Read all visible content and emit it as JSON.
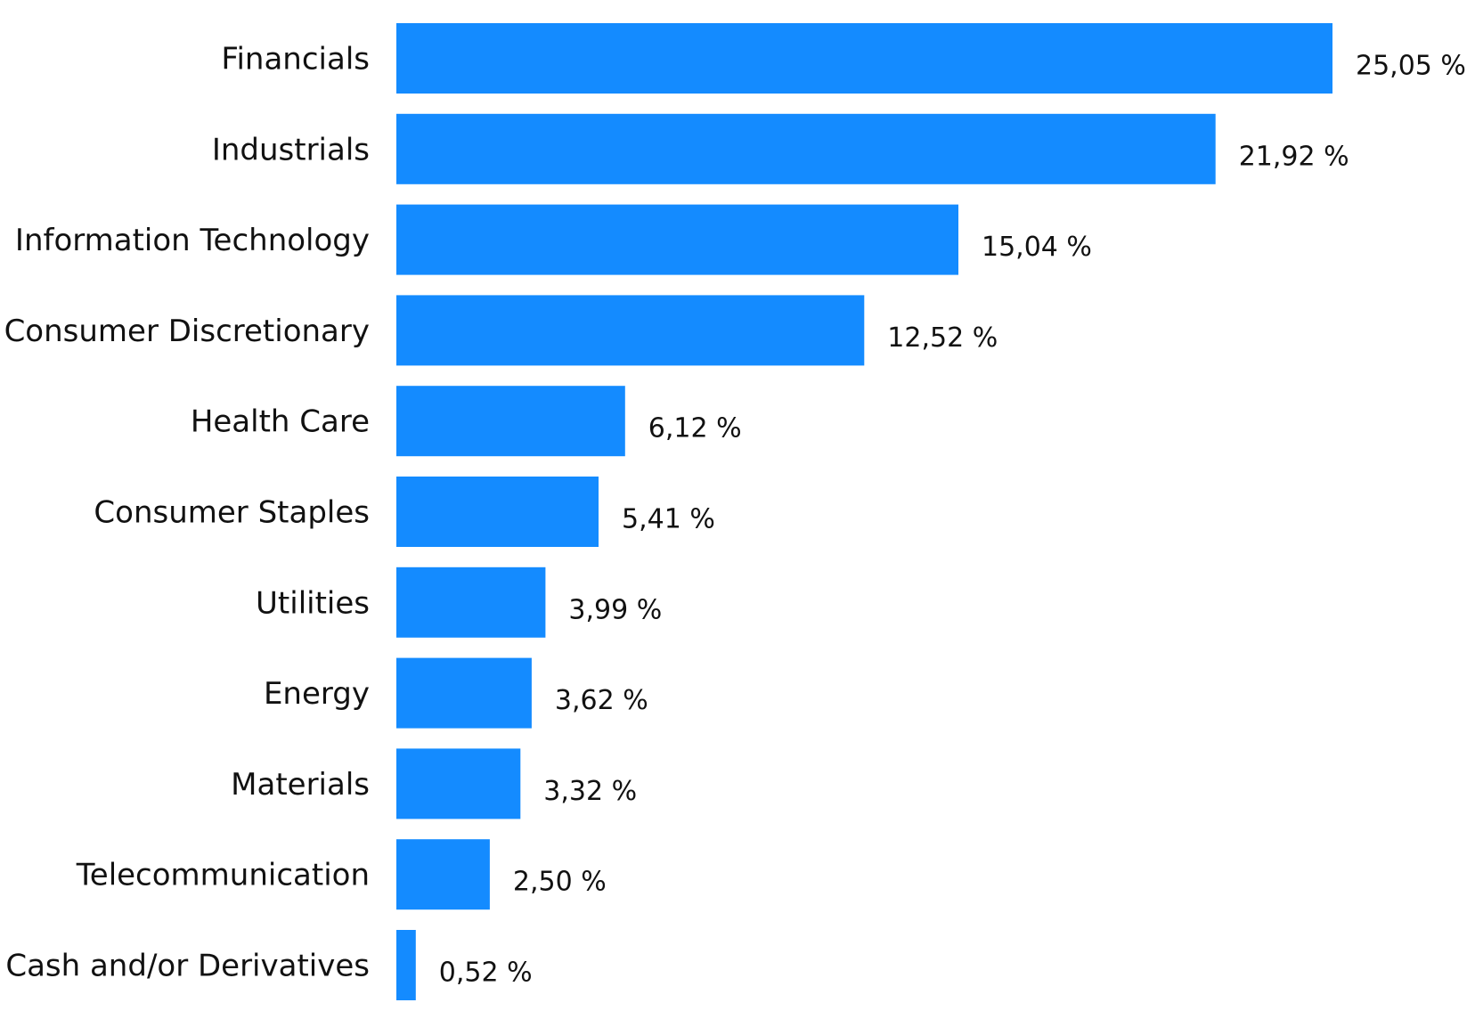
{
  "chart_data": {
    "type": "bar",
    "orientation": "horizontal",
    "title": "",
    "xlabel": "",
    "ylabel": "",
    "grid": false,
    "legend": "none",
    "value_suffix": " %",
    "decimal_separator": ",",
    "xlim": [
      0,
      25.05
    ],
    "bar_color": "#148BFF",
    "categories": [
      "Financials",
      "Industrials",
      "Information Technology",
      "Consumer Discretionary",
      "Health Care",
      "Consumer Staples",
      "Utilities",
      "Energy",
      "Materials",
      "Telecommunication",
      "Cash and/or Derivatives"
    ],
    "values": [
      25.05,
      21.92,
      15.04,
      12.52,
      6.12,
      5.41,
      3.99,
      3.62,
      3.32,
      2.5,
      0.52
    ],
    "value_labels": [
      "25,05 %",
      "21,92 %",
      "15,04 %",
      "12,52 %",
      "6,12 %",
      "5,41 %",
      "3,99 %",
      "3,62 %",
      "3,32 %",
      "2,50 %",
      "0,52 %"
    ]
  }
}
